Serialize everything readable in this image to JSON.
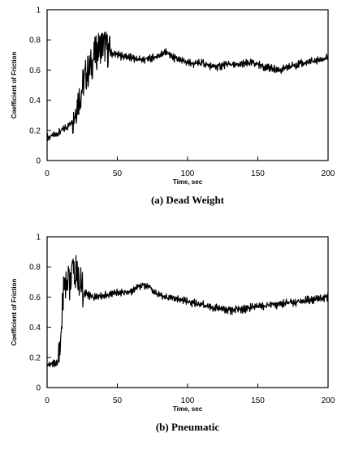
{
  "chart_data": [
    {
      "type": "line",
      "caption": "(a) Dead Weight",
      "xlabel": "Time, sec",
      "ylabel": "Coefficient of Friction",
      "xlim": [
        0,
        200
      ],
      "ylim": [
        0,
        1
      ],
      "xticks": [
        0,
        50,
        100,
        150,
        200
      ],
      "yticks": [
        0,
        0.2,
        0.4,
        0.6,
        0.8,
        1
      ],
      "ytick_labels": [
        "0",
        "0.2",
        "0.4",
        "0.6",
        "0.8",
        "1"
      ],
      "grid": false,
      "series": [
        {
          "color": "#000000",
          "x": [
            0,
            3,
            6,
            9,
            12,
            15,
            18,
            20,
            22,
            24,
            26,
            28,
            30,
            32,
            34,
            36,
            38,
            40,
            42,
            44,
            46,
            50,
            55,
            60,
            65,
            70,
            75,
            80,
            85,
            90,
            95,
            100,
            105,
            110,
            115,
            120,
            125,
            130,
            135,
            140,
            145,
            150,
            155,
            160,
            165,
            170,
            175,
            180,
            185,
            190,
            195,
            200
          ],
          "y": [
            0.15,
            0.16,
            0.17,
            0.19,
            0.21,
            0.23,
            0.27,
            0.33,
            0.4,
            0.45,
            0.52,
            0.58,
            0.6,
            0.65,
            0.7,
            0.73,
            0.76,
            0.77,
            0.75,
            0.72,
            0.71,
            0.7,
            0.69,
            0.68,
            0.67,
            0.67,
            0.68,
            0.7,
            0.72,
            0.68,
            0.66,
            0.65,
            0.64,
            0.65,
            0.63,
            0.62,
            0.63,
            0.64,
            0.63,
            0.64,
            0.65,
            0.64,
            0.62,
            0.61,
            0.6,
            0.61,
            0.63,
            0.64,
            0.65,
            0.66,
            0.67,
            0.68
          ]
        }
      ]
    },
    {
      "type": "line",
      "caption": "(b) Pneumatic",
      "xlabel": "Time, sec",
      "ylabel": "Coefficient of Friction",
      "xlim": [
        0,
        200
      ],
      "ylim": [
        0,
        1
      ],
      "xticks": [
        0,
        50,
        100,
        150,
        200
      ],
      "yticks": [
        0,
        0.2,
        0.4,
        0.6,
        0.8,
        1
      ],
      "ytick_labels": [
        "0",
        "0.2",
        "0.4",
        "0.6",
        "0.8",
        "1"
      ],
      "grid": false,
      "series": [
        {
          "color": "#000000",
          "x": [
            0,
            2,
            4,
            6,
            8,
            9,
            10,
            11,
            12,
            14,
            16,
            18,
            20,
            22,
            24,
            26,
            30,
            35,
            40,
            45,
            50,
            55,
            60,
            65,
            68,
            72,
            76,
            80,
            85,
            90,
            95,
            100,
            105,
            110,
            115,
            120,
            125,
            130,
            135,
            140,
            145,
            150,
            155,
            160,
            165,
            170,
            175,
            180,
            185,
            190,
            195,
            200
          ],
          "y": [
            0.15,
            0.15,
            0.16,
            0.16,
            0.18,
            0.2,
            0.4,
            0.55,
            0.7,
            0.72,
            0.7,
            0.74,
            0.77,
            0.73,
            0.68,
            0.63,
            0.61,
            0.6,
            0.61,
            0.62,
            0.63,
            0.63,
            0.64,
            0.66,
            0.68,
            0.67,
            0.64,
            0.61,
            0.6,
            0.59,
            0.58,
            0.57,
            0.56,
            0.55,
            0.54,
            0.53,
            0.52,
            0.51,
            0.52,
            0.52,
            0.53,
            0.54,
            0.54,
            0.55,
            0.55,
            0.56,
            0.56,
            0.57,
            0.58,
            0.58,
            0.59,
            0.6
          ]
        }
      ]
    }
  ]
}
